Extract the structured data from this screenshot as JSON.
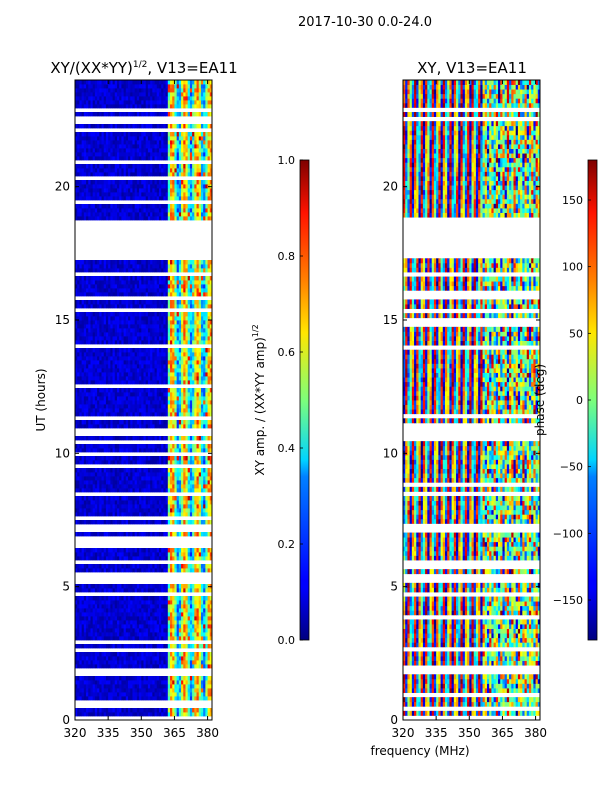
{
  "figure": {
    "suptitle": "2017-10-30 0.0-24.0",
    "xlabel": "frequency (MHz)"
  },
  "chart_data": [
    {
      "type": "heatmap",
      "title": "XY/(XX*YY)",
      "title_exp": "1/2",
      "title_suffix": ", V13=EA11",
      "ylabel": "UT (hours)",
      "xlim": [
        320,
        382
      ],
      "ylim": [
        0,
        24
      ],
      "xticks": [
        "320",
        "335",
        "350",
        "365",
        "380"
      ],
      "xtick_values": [
        320,
        335,
        350,
        365,
        380
      ],
      "yticks": [
        "0",
        "5",
        "10",
        "15",
        "20"
      ],
      "ytick_values": [
        0,
        5,
        10,
        15,
        20
      ],
      "data_gaps_ut": [
        [
          17.3,
          18.8
        ],
        [
          5.1,
          5.5
        ],
        [
          22.4,
          22.6
        ],
        [
          22.8,
          22.95
        ],
        [
          7.0,
          7.2
        ],
        [
          0.4,
          0.5
        ],
        [
          0.85,
          0.95
        ]
      ],
      "colorbar": {
        "label": "XY amp. / (XX*YY amp)",
        "label_exp": "1/2",
        "range": [
          0.0,
          1.0
        ],
        "ticks": [
          "0.0",
          "0.2",
          "0.4",
          "0.6",
          "0.8",
          "1.0"
        ],
        "tick_values": [
          0.0,
          0.2,
          0.4,
          0.6,
          0.8,
          1.0
        ]
      }
    },
    {
      "type": "heatmap",
      "title": "XY, V13=EA11",
      "xlim": [
        320,
        382
      ],
      "ylim": [
        0,
        24
      ],
      "xticks": [
        "320",
        "335",
        "350",
        "365",
        "380"
      ],
      "xtick_values": [
        320,
        335,
        350,
        365,
        380
      ],
      "yticks": [
        "0",
        "5",
        "10",
        "15",
        "20"
      ],
      "ytick_values": [
        0,
        5,
        10,
        15,
        20
      ],
      "data_gaps_ut": [
        [
          17.3,
          18.8
        ],
        [
          5.1,
          5.5
        ],
        [
          22.4,
          22.6
        ],
        [
          22.8,
          22.95
        ],
        [
          7.0,
          7.2
        ],
        [
          0.4,
          0.5
        ],
        [
          0.85,
          0.95
        ]
      ],
      "colorbar": {
        "label": "phase (deg)",
        "range": [
          -180,
          180
        ],
        "ticks": [
          "−150",
          "−100",
          "−50",
          "0",
          "50",
          "100",
          "150"
        ],
        "tick_values": [
          -150,
          -100,
          -50,
          0,
          50,
          100,
          150
        ]
      }
    }
  ]
}
